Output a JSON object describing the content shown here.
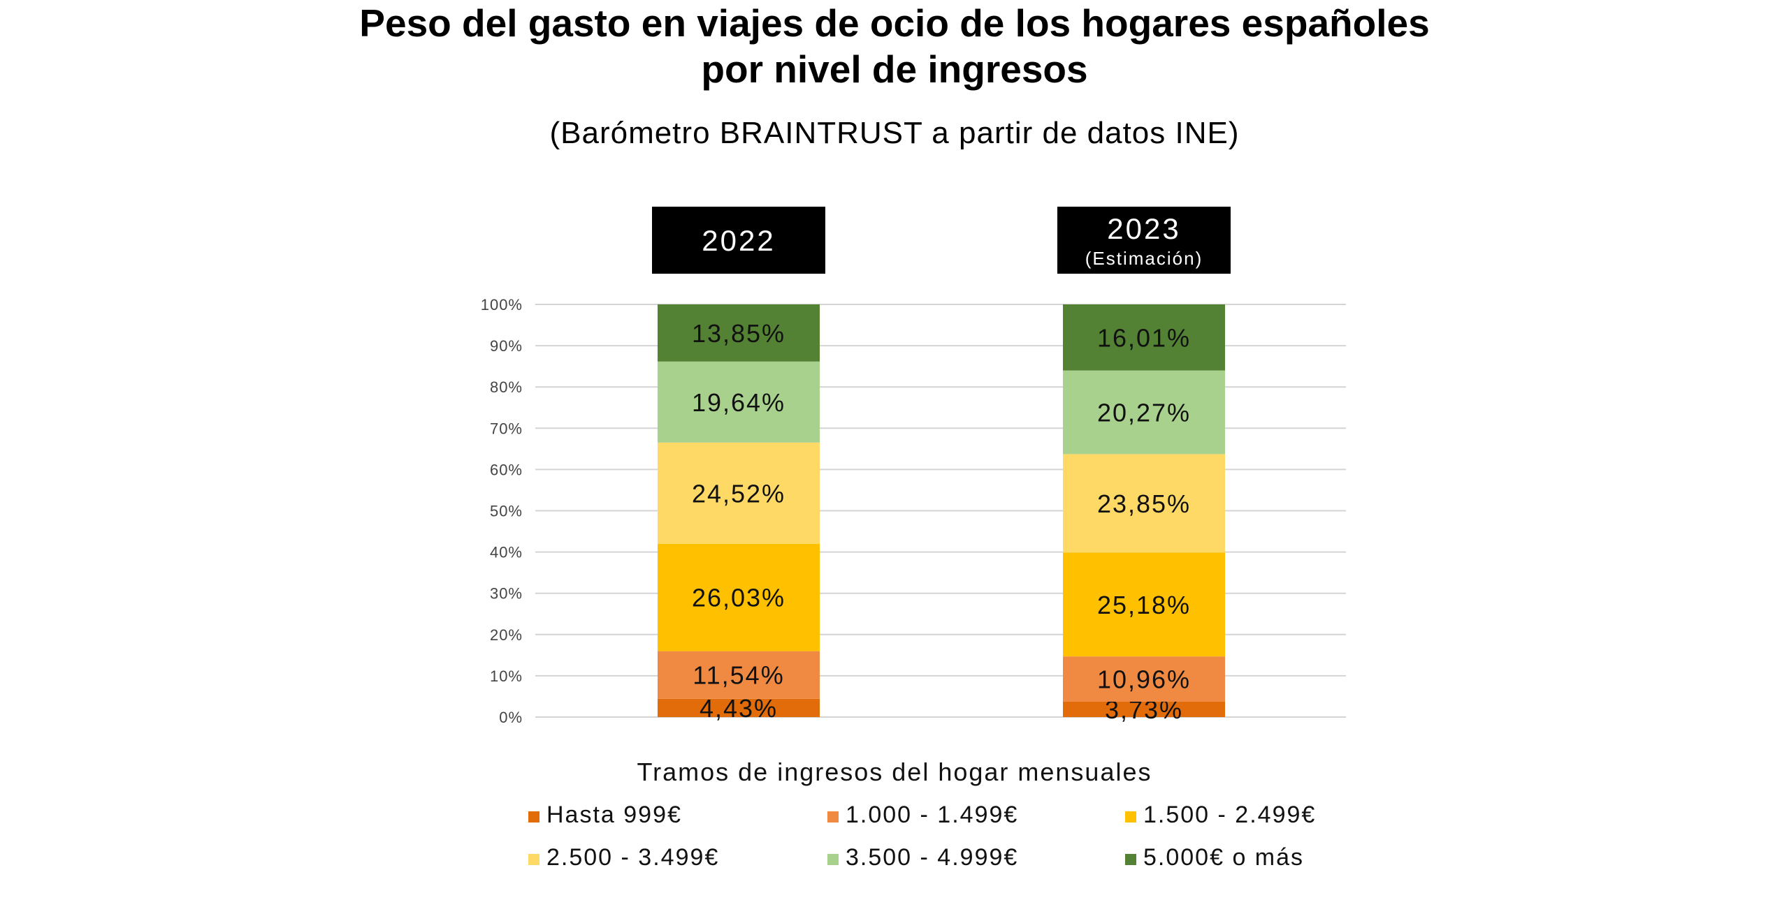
{
  "title_line1": "Peso del gasto en viajes de ocio de los hogares españoles",
  "title_line2": "por nivel de ingresos",
  "subtitle": "(Barómetro BRAINTRUST a partir de datos INE)",
  "legend_title": "Tramos de ingresos del hogar mensuales",
  "chart_data": {
    "type": "bar",
    "stacked": true,
    "normalized": true,
    "title": "Peso del gasto en viajes de ocio de los hogares españoles por nivel de ingresos",
    "subtitle": "(Barómetro BRAINTRUST a partir de datos INE)",
    "categories": [
      {
        "year": "2022",
        "note": ""
      },
      {
        "year": "2023",
        "note": "(Estimación)"
      }
    ],
    "ylim": [
      0,
      100
    ],
    "yticks": [
      "0%",
      "10%",
      "20%",
      "30%",
      "40%",
      "50%",
      "60%",
      "70%",
      "80%",
      "90%",
      "100%"
    ],
    "grid": true,
    "legend_position": "bottom",
    "series": [
      {
        "name": "Hasta 999€",
        "color": "#E36C0A",
        "values": [
          4.43,
          3.73
        ],
        "labels": [
          "4,43%",
          "3,73%"
        ]
      },
      {
        "name": "1.000 - 1.499€",
        "color": "#F08A42",
        "values": [
          11.54,
          10.96
        ],
        "labels": [
          "11,54%",
          "10,96%"
        ]
      },
      {
        "name": "1.500 - 2.499€",
        "color": "#FFC000",
        "values": [
          26.03,
          25.18
        ],
        "labels": [
          "26,03%",
          "25,18%"
        ]
      },
      {
        "name": "2.500 - 3.499€",
        "color": "#FFD966",
        "values": [
          24.52,
          23.85
        ],
        "labels": [
          "24,52%",
          "23,85%"
        ]
      },
      {
        "name": "3.500 - 4.999€",
        "color": "#A9D18E",
        "values": [
          19.64,
          20.27
        ],
        "labels": [
          "19,64%",
          "20,27%"
        ]
      },
      {
        "name": "5.000€ o más",
        "color": "#548235",
        "values": [
          13.85,
          16.01
        ],
        "labels": [
          "13,85%",
          "16,01%"
        ]
      }
    ]
  }
}
